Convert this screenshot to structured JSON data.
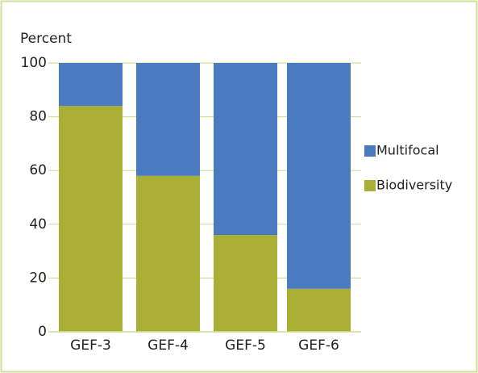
{
  "chart_data": {
    "type": "stacked_bar",
    "y_label": "Percent",
    "categories": [
      "GEF-3",
      "GEF-4",
      "GEF-5",
      "GEF-6"
    ],
    "series": [
      {
        "name": "Biodiversity",
        "color": "#a9ae35",
        "values": [
          84,
          58,
          36,
          16
        ]
      },
      {
        "name": "Multifocal",
        "color": "#4a7bc0",
        "values": [
          16,
          42,
          64,
          84
        ]
      }
    ],
    "ylim": [
      0,
      100
    ],
    "yticks": [
      0,
      20,
      40,
      60,
      80,
      100
    ],
    "grid": true,
    "legend": "right"
  }
}
